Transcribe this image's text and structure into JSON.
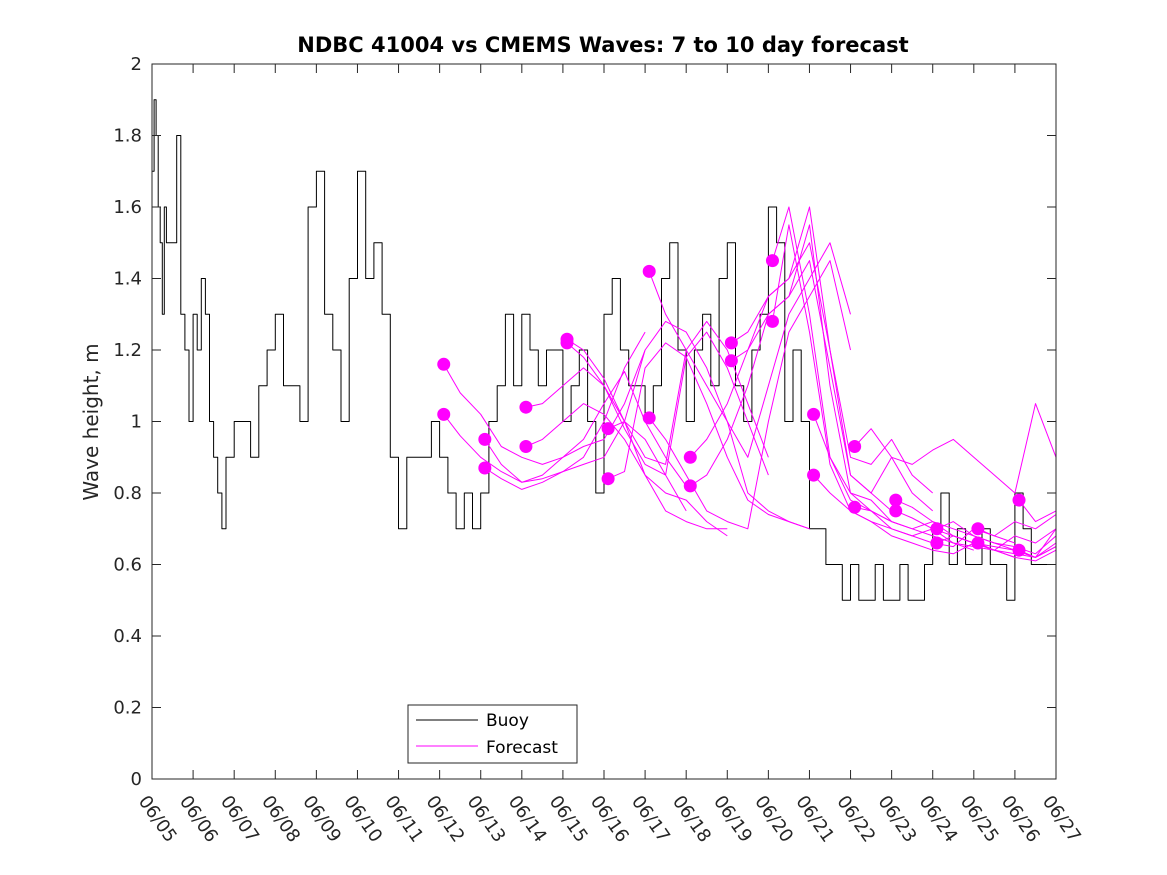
{
  "chart_data": {
    "type": "line",
    "title": "NDBC 41004 vs CMEMS Waves: 7 to 10 day forecast",
    "xlabel": "",
    "ylabel": "Wave height, m",
    "xlim": [
      0,
      22
    ],
    "ylim": [
      0,
      2
    ],
    "x_tick_labels": [
      "06/05",
      "06/06",
      "06/07",
      "06/08",
      "06/09",
      "06/10",
      "06/11",
      "06/12",
      "06/13",
      "06/14",
      "06/15",
      "06/16",
      "06/17",
      "06/18",
      "06/19",
      "06/20",
      "06/21",
      "06/22",
      "06/23",
      "06/24",
      "06/25",
      "06/26",
      "06/27"
    ],
    "y_tick_labels": [
      "0",
      "0.2",
      "0.4",
      "0.6",
      "0.8",
      "1",
      "1.2",
      "1.4",
      "1.6",
      "1.8",
      "2"
    ],
    "legend": {
      "placement": "bottom-center",
      "entries": [
        {
          "label": "Buoy",
          "color": "#000000"
        },
        {
          "label": "Forecast",
          "color": "#ff00ff"
        }
      ]
    },
    "colors": {
      "buoy": "#000000",
      "forecast": "#ff00ff"
    },
    "series": [
      {
        "name": "Buoy",
        "x": [
          0.0,
          0.05,
          0.1,
          0.15,
          0.2,
          0.25,
          0.3,
          0.35,
          0.4,
          0.5,
          0.6,
          0.7,
          0.8,
          0.9,
          1.0,
          1.1,
          1.2,
          1.3,
          1.4,
          1.5,
          1.6,
          1.7,
          1.8,
          1.9,
          2.0,
          2.2,
          2.4,
          2.6,
          2.8,
          3.0,
          3.2,
          3.4,
          3.6,
          3.8,
          4.0,
          4.2,
          4.4,
          4.6,
          4.8,
          5.0,
          5.2,
          5.4,
          5.6,
          5.8,
          6.0,
          6.2,
          6.4,
          6.6,
          6.8,
          7.0,
          7.2,
          7.4,
          7.6,
          7.8,
          8.0,
          8.2,
          8.4,
          8.6,
          8.8,
          9.0,
          9.2,
          9.4,
          9.6,
          9.8,
          10.0,
          10.2,
          10.4,
          10.6,
          10.8,
          11.0,
          11.2,
          11.4,
          11.6,
          11.8,
          12.0,
          12.2,
          12.4,
          12.6,
          12.8,
          13.0,
          13.2,
          13.4,
          13.6,
          13.8,
          14.0,
          14.2,
          14.4,
          14.6,
          14.8,
          15.0,
          15.2,
          15.4,
          15.6,
          15.8,
          16.0,
          16.2,
          16.4,
          16.6,
          16.8,
          17.0,
          17.2,
          17.4,
          17.6,
          17.8,
          18.0,
          18.2,
          18.4,
          18.6,
          18.8,
          19.0,
          19.2,
          19.4,
          19.6,
          19.8,
          20.0,
          20.2,
          20.4,
          20.6,
          20.8,
          21.0,
          21.2,
          21.4,
          21.6,
          21.8,
          22.0
        ],
        "values": [
          1.7,
          1.9,
          1.8,
          1.6,
          1.5,
          1.3,
          1.6,
          1.5,
          1.5,
          1.5,
          1.8,
          1.3,
          1.2,
          1.0,
          1.3,
          1.2,
          1.4,
          1.3,
          1.0,
          0.9,
          0.8,
          0.7,
          0.9,
          0.9,
          1.0,
          1.0,
          0.9,
          1.1,
          1.2,
          1.3,
          1.1,
          1.1,
          1.0,
          1.6,
          1.7,
          1.3,
          1.2,
          1.0,
          1.4,
          1.7,
          1.4,
          1.5,
          1.3,
          0.9,
          0.7,
          0.9,
          0.9,
          0.9,
          1.0,
          0.9,
          0.8,
          0.7,
          0.8,
          0.7,
          0.8,
          1.0,
          1.1,
          1.3,
          1.1,
          1.3,
          1.2,
          1.1,
          1.2,
          1.2,
          1.0,
          1.1,
          1.2,
          1.0,
          0.8,
          1.3,
          1.4,
          1.2,
          1.1,
          1.1,
          1.0,
          1.1,
          1.4,
          1.5,
          1.2,
          1.0,
          1.2,
          1.3,
          1.1,
          1.4,
          1.5,
          1.1,
          1.0,
          1.2,
          1.3,
          1.6,
          1.5,
          1.0,
          1.2,
          1.0,
          0.7,
          0.7,
          0.6,
          0.6,
          0.5,
          0.6,
          0.5,
          0.5,
          0.6,
          0.5,
          0.5,
          0.6,
          0.5,
          0.5,
          0.6,
          0.7,
          0.8,
          0.6,
          0.7,
          0.6,
          0.6,
          0.7,
          0.6,
          0.6,
          0.5,
          0.8,
          0.7,
          0.6,
          0.6,
          0.6,
          0.6
        ]
      },
      {
        "name": "Forecast",
        "x": [
          7.1,
          7.5,
          8.0,
          8.5,
          9.0,
          9.5,
          10.0,
          10.5,
          11.0,
          11.5,
          12.0
        ],
        "values": [
          1.16,
          1.08,
          1.02,
          0.93,
          0.9,
          0.88,
          0.9,
          0.93,
          0.95,
          1.05,
          1.2
        ]
      },
      {
        "name": "Forecast",
        "x": [
          7.1,
          7.5,
          8.0,
          8.5,
          9.0,
          9.5,
          10.0,
          10.5,
          11.0,
          11.5,
          12.0
        ],
        "values": [
          1.02,
          0.96,
          0.9,
          0.86,
          0.83,
          0.84,
          0.86,
          0.9,
          1.0,
          1.15,
          1.25
        ]
      },
      {
        "name": "Forecast",
        "x": [
          8.1,
          8.5,
          9.0,
          9.5,
          10.0,
          10.5,
          11.0,
          11.5,
          12.0,
          12.5,
          13.0
        ],
        "values": [
          0.95,
          0.88,
          0.83,
          0.85,
          0.9,
          0.95,
          1.05,
          1.14,
          1.0,
          0.9,
          0.82
        ]
      },
      {
        "name": "Forecast",
        "x": [
          8.1,
          8.5,
          9.0,
          9.5,
          10.0,
          10.5,
          11.0,
          11.5,
          12.0,
          12.5,
          13.0
        ],
        "values": [
          0.87,
          0.84,
          0.81,
          0.83,
          0.86,
          0.88,
          0.9,
          1.0,
          0.95,
          0.85,
          0.75
        ]
      },
      {
        "name": "Forecast",
        "x": [
          9.1,
          9.5,
          10.0,
          10.5,
          11.0,
          11.5,
          12.0,
          12.5,
          13.0,
          13.5,
          14.0
        ],
        "values": [
          1.04,
          1.05,
          1.1,
          1.15,
          1.1,
          1.0,
          0.85,
          0.8,
          0.78,
          0.72,
          0.68
        ]
      },
      {
        "name": "Forecast",
        "x": [
          9.1,
          9.5,
          10.0,
          10.5,
          11.0,
          11.5,
          12.0,
          12.5,
          13.0,
          13.5,
          14.0
        ],
        "values": [
          0.93,
          0.95,
          1.0,
          1.05,
          1.02,
          0.95,
          0.85,
          0.75,
          0.72,
          0.7,
          0.7
        ]
      },
      {
        "name": "Forecast",
        "x": [
          10.1,
          10.5,
          11.0,
          11.5,
          12.0,
          12.5,
          13.0,
          13.5,
          14.0,
          14.5,
          15.0
        ],
        "values": [
          1.23,
          1.2,
          1.12,
          1.0,
          0.9,
          0.88,
          1.2,
          1.28,
          1.2,
          1.05,
          0.9
        ]
      },
      {
        "name": "Forecast",
        "x": [
          10.1,
          10.5,
          11.0,
          11.5,
          12.0,
          12.5,
          13.0,
          13.5,
          14.0,
          14.5,
          15.0
        ],
        "values": [
          1.22,
          1.18,
          1.1,
          0.98,
          0.88,
          0.85,
          1.18,
          1.25,
          1.15,
          1.0,
          0.85
        ]
      },
      {
        "name": "Forecast",
        "x": [
          11.1,
          11.5,
          12.0,
          12.5,
          13.0,
          13.5,
          14.0,
          14.5,
          15.0,
          15.5,
          16.0
        ],
        "values": [
          0.98,
          1.0,
          1.2,
          1.28,
          1.25,
          1.15,
          1.0,
          0.8,
          0.75,
          0.72,
          0.7
        ]
      },
      {
        "name": "Forecast",
        "x": [
          11.1,
          11.5,
          12.0,
          12.5,
          13.0,
          13.5,
          14.0,
          14.5,
          15.0,
          15.5,
          16.0
        ],
        "values": [
          0.84,
          0.86,
          1.15,
          1.22,
          1.18,
          1.05,
          0.9,
          0.78,
          0.74,
          0.72,
          0.7
        ]
      },
      {
        "name": "Forecast",
        "x": [
          12.1,
          12.5,
          13.0,
          13.5,
          14.0,
          14.5,
          15.0,
          15.5,
          16.0,
          16.5,
          17.0
        ],
        "values": [
          1.42,
          1.3,
          1.2,
          1.1,
          1.0,
          0.9,
          1.1,
          1.3,
          1.4,
          1.5,
          1.3
        ]
      },
      {
        "name": "Forecast",
        "x": [
          12.1,
          12.5,
          13.0,
          13.5,
          14.0,
          14.5,
          15.0,
          15.5,
          16.0,
          16.5,
          17.0
        ],
        "values": [
          1.01,
          0.95,
          0.85,
          0.75,
          0.72,
          0.7,
          1.0,
          1.25,
          1.35,
          1.45,
          1.2
        ]
      },
      {
        "name": "Forecast",
        "x": [
          13.1,
          13.5,
          14.0,
          14.5,
          15.0,
          15.5,
          16.0,
          16.5,
          17.0,
          17.5,
          18.0
        ],
        "values": [
          0.9,
          0.95,
          1.05,
          1.2,
          1.35,
          1.4,
          1.6,
          1.2,
          0.85,
          0.8,
          0.75
        ]
      },
      {
        "name": "Forecast",
        "x": [
          13.1,
          13.5,
          14.0,
          14.5,
          15.0,
          15.5,
          16.0,
          16.5,
          17.0,
          17.5,
          18.0
        ],
        "values": [
          0.82,
          0.85,
          0.95,
          1.1,
          1.3,
          1.35,
          1.55,
          1.1,
          0.8,
          0.78,
          0.72
        ]
      },
      {
        "name": "Forecast",
        "x": [
          14.1,
          14.5,
          15.0,
          15.5,
          16.0,
          16.5,
          17.0,
          17.5,
          18.0,
          18.5,
          19.0
        ],
        "values": [
          1.22,
          1.25,
          1.35,
          1.4,
          1.5,
          1.2,
          0.9,
          0.88,
          0.95,
          0.85,
          0.8
        ]
      },
      {
        "name": "Forecast",
        "x": [
          14.1,
          14.5,
          15.0,
          15.5,
          16.0,
          16.5,
          17.0,
          17.5,
          18.0,
          18.5,
          19.0
        ],
        "values": [
          1.17,
          1.2,
          1.3,
          1.35,
          1.45,
          1.15,
          0.85,
          0.8,
          0.9,
          0.8,
          0.75
        ]
      },
      {
        "name": "Forecast",
        "x": [
          15.1,
          15.5,
          16.0,
          16.5,
          17.0,
          17.5,
          18.0,
          18.5,
          19.0,
          19.5,
          20.0
        ],
        "values": [
          1.45,
          1.6,
          1.3,
          0.9,
          0.78,
          0.75,
          0.72,
          0.7,
          0.72,
          0.68,
          0.66
        ]
      },
      {
        "name": "Forecast",
        "x": [
          15.1,
          15.5,
          16.0,
          16.5,
          17.0,
          17.5,
          18.0,
          18.5,
          19.0,
          19.5,
          20.0
        ],
        "values": [
          1.28,
          1.55,
          1.25,
          0.88,
          0.75,
          0.72,
          0.7,
          0.68,
          0.7,
          0.66,
          0.64
        ]
      },
      {
        "name": "Forecast",
        "x": [
          16.1,
          16.5,
          17.0,
          17.5,
          18.0,
          18.5,
          19.0,
          19.5,
          20.0,
          20.5,
          21.0
        ],
        "values": [
          1.02,
          0.9,
          0.8,
          0.75,
          0.7,
          0.68,
          0.66,
          0.65,
          0.7,
          0.68,
          0.66
        ]
      },
      {
        "name": "Forecast",
        "x": [
          16.1,
          16.5,
          17.0,
          17.5,
          18.0,
          18.5,
          19.0,
          19.5,
          20.0,
          20.5,
          21.0
        ],
        "values": [
          0.85,
          0.8,
          0.75,
          0.72,
          0.68,
          0.66,
          0.64,
          0.63,
          0.66,
          0.64,
          0.62
        ]
      },
      {
        "name": "Forecast",
        "x": [
          17.1,
          17.5,
          18.0,
          18.5,
          19.0,
          19.5,
          20.0,
          20.5,
          21.0,
          21.5,
          22.0
        ],
        "values": [
          0.93,
          0.98,
          0.9,
          0.88,
          0.92,
          0.95,
          0.9,
          0.85,
          0.8,
          1.05,
          0.9
        ]
      },
      {
        "name": "Forecast",
        "x": [
          17.1,
          17.5,
          18.0,
          18.5,
          19.0,
          19.5,
          20.0,
          20.5,
          21.0,
          21.5,
          22.0
        ],
        "values": [
          0.76,
          0.75,
          0.72,
          0.7,
          0.68,
          0.66,
          0.65,
          0.64,
          0.63,
          0.62,
          0.65
        ]
      },
      {
        "name": "Forecast",
        "x": [
          18.1,
          18.5,
          19.0,
          19.5,
          20.0,
          20.5,
          21.0,
          21.5,
          22.0
        ],
        "values": [
          0.78,
          0.76,
          0.72,
          0.7,
          0.68,
          0.66,
          0.64,
          0.62,
          0.66
        ]
      },
      {
        "name": "Forecast",
        "x": [
          18.1,
          18.5,
          19.0,
          19.5,
          20.0,
          20.5,
          21.0,
          21.5,
          22.0
        ],
        "values": [
          0.75,
          0.73,
          0.7,
          0.68,
          0.66,
          0.64,
          0.62,
          0.61,
          0.64
        ]
      },
      {
        "name": "Forecast",
        "x": [
          19.1,
          19.5,
          20.0,
          20.5,
          21.0,
          21.5,
          22.0
        ],
        "values": [
          0.7,
          0.72,
          0.68,
          0.66,
          0.65,
          0.63,
          0.68
        ]
      },
      {
        "name": "Forecast",
        "x": [
          19.1,
          19.5,
          20.0,
          20.5,
          21.0,
          21.5,
          22.0
        ],
        "values": [
          0.66,
          0.68,
          0.66,
          0.65,
          0.64,
          0.62,
          0.65
        ]
      },
      {
        "name": "Forecast",
        "x": [
          20.1,
          20.5,
          21.0,
          21.5,
          22.0
        ],
        "values": [
          0.7,
          0.68,
          0.72,
          0.7,
          0.74
        ]
      },
      {
        "name": "Forecast",
        "x": [
          20.1,
          20.5,
          21.0,
          21.5,
          22.0
        ],
        "values": [
          0.66,
          0.64,
          0.68,
          0.66,
          0.7
        ]
      },
      {
        "name": "Forecast",
        "x": [
          21.1,
          21.5,
          22.0
        ],
        "values": [
          0.78,
          0.72,
          0.75
        ]
      },
      {
        "name": "Forecast",
        "x": [
          21.1,
          21.5,
          22.0
        ],
        "values": [
          0.64,
          0.62,
          0.7
        ]
      }
    ],
    "markers": {
      "color": "#ff00ff",
      "points": [
        {
          "x": 7.1,
          "y": 1.16
        },
        {
          "x": 7.1,
          "y": 1.02
        },
        {
          "x": 8.1,
          "y": 0.95
        },
        {
          "x": 8.1,
          "y": 0.87
        },
        {
          "x": 9.1,
          "y": 1.04
        },
        {
          "x": 9.1,
          "y": 0.93
        },
        {
          "x": 10.1,
          "y": 1.23
        },
        {
          "x": 10.1,
          "y": 1.22
        },
        {
          "x": 11.1,
          "y": 0.98
        },
        {
          "x": 11.1,
          "y": 0.84
        },
        {
          "x": 12.1,
          "y": 1.42
        },
        {
          "x": 12.1,
          "y": 1.01
        },
        {
          "x": 13.1,
          "y": 0.9
        },
        {
          "x": 13.1,
          "y": 0.82
        },
        {
          "x": 14.1,
          "y": 1.22
        },
        {
          "x": 14.1,
          "y": 1.17
        },
        {
          "x": 15.1,
          "y": 1.45
        },
        {
          "x": 15.1,
          "y": 1.28
        },
        {
          "x": 16.1,
          "y": 1.02
        },
        {
          "x": 16.1,
          "y": 0.85
        },
        {
          "x": 17.1,
          "y": 0.93
        },
        {
          "x": 17.1,
          "y": 0.76
        },
        {
          "x": 18.1,
          "y": 0.78
        },
        {
          "x": 18.1,
          "y": 0.75
        },
        {
          "x": 19.1,
          "y": 0.7
        },
        {
          "x": 19.1,
          "y": 0.66
        },
        {
          "x": 20.1,
          "y": 0.7
        },
        {
          "x": 20.1,
          "y": 0.66
        },
        {
          "x": 21.1,
          "y": 0.78
        },
        {
          "x": 21.1,
          "y": 0.64
        }
      ]
    },
    "grid": false
  }
}
